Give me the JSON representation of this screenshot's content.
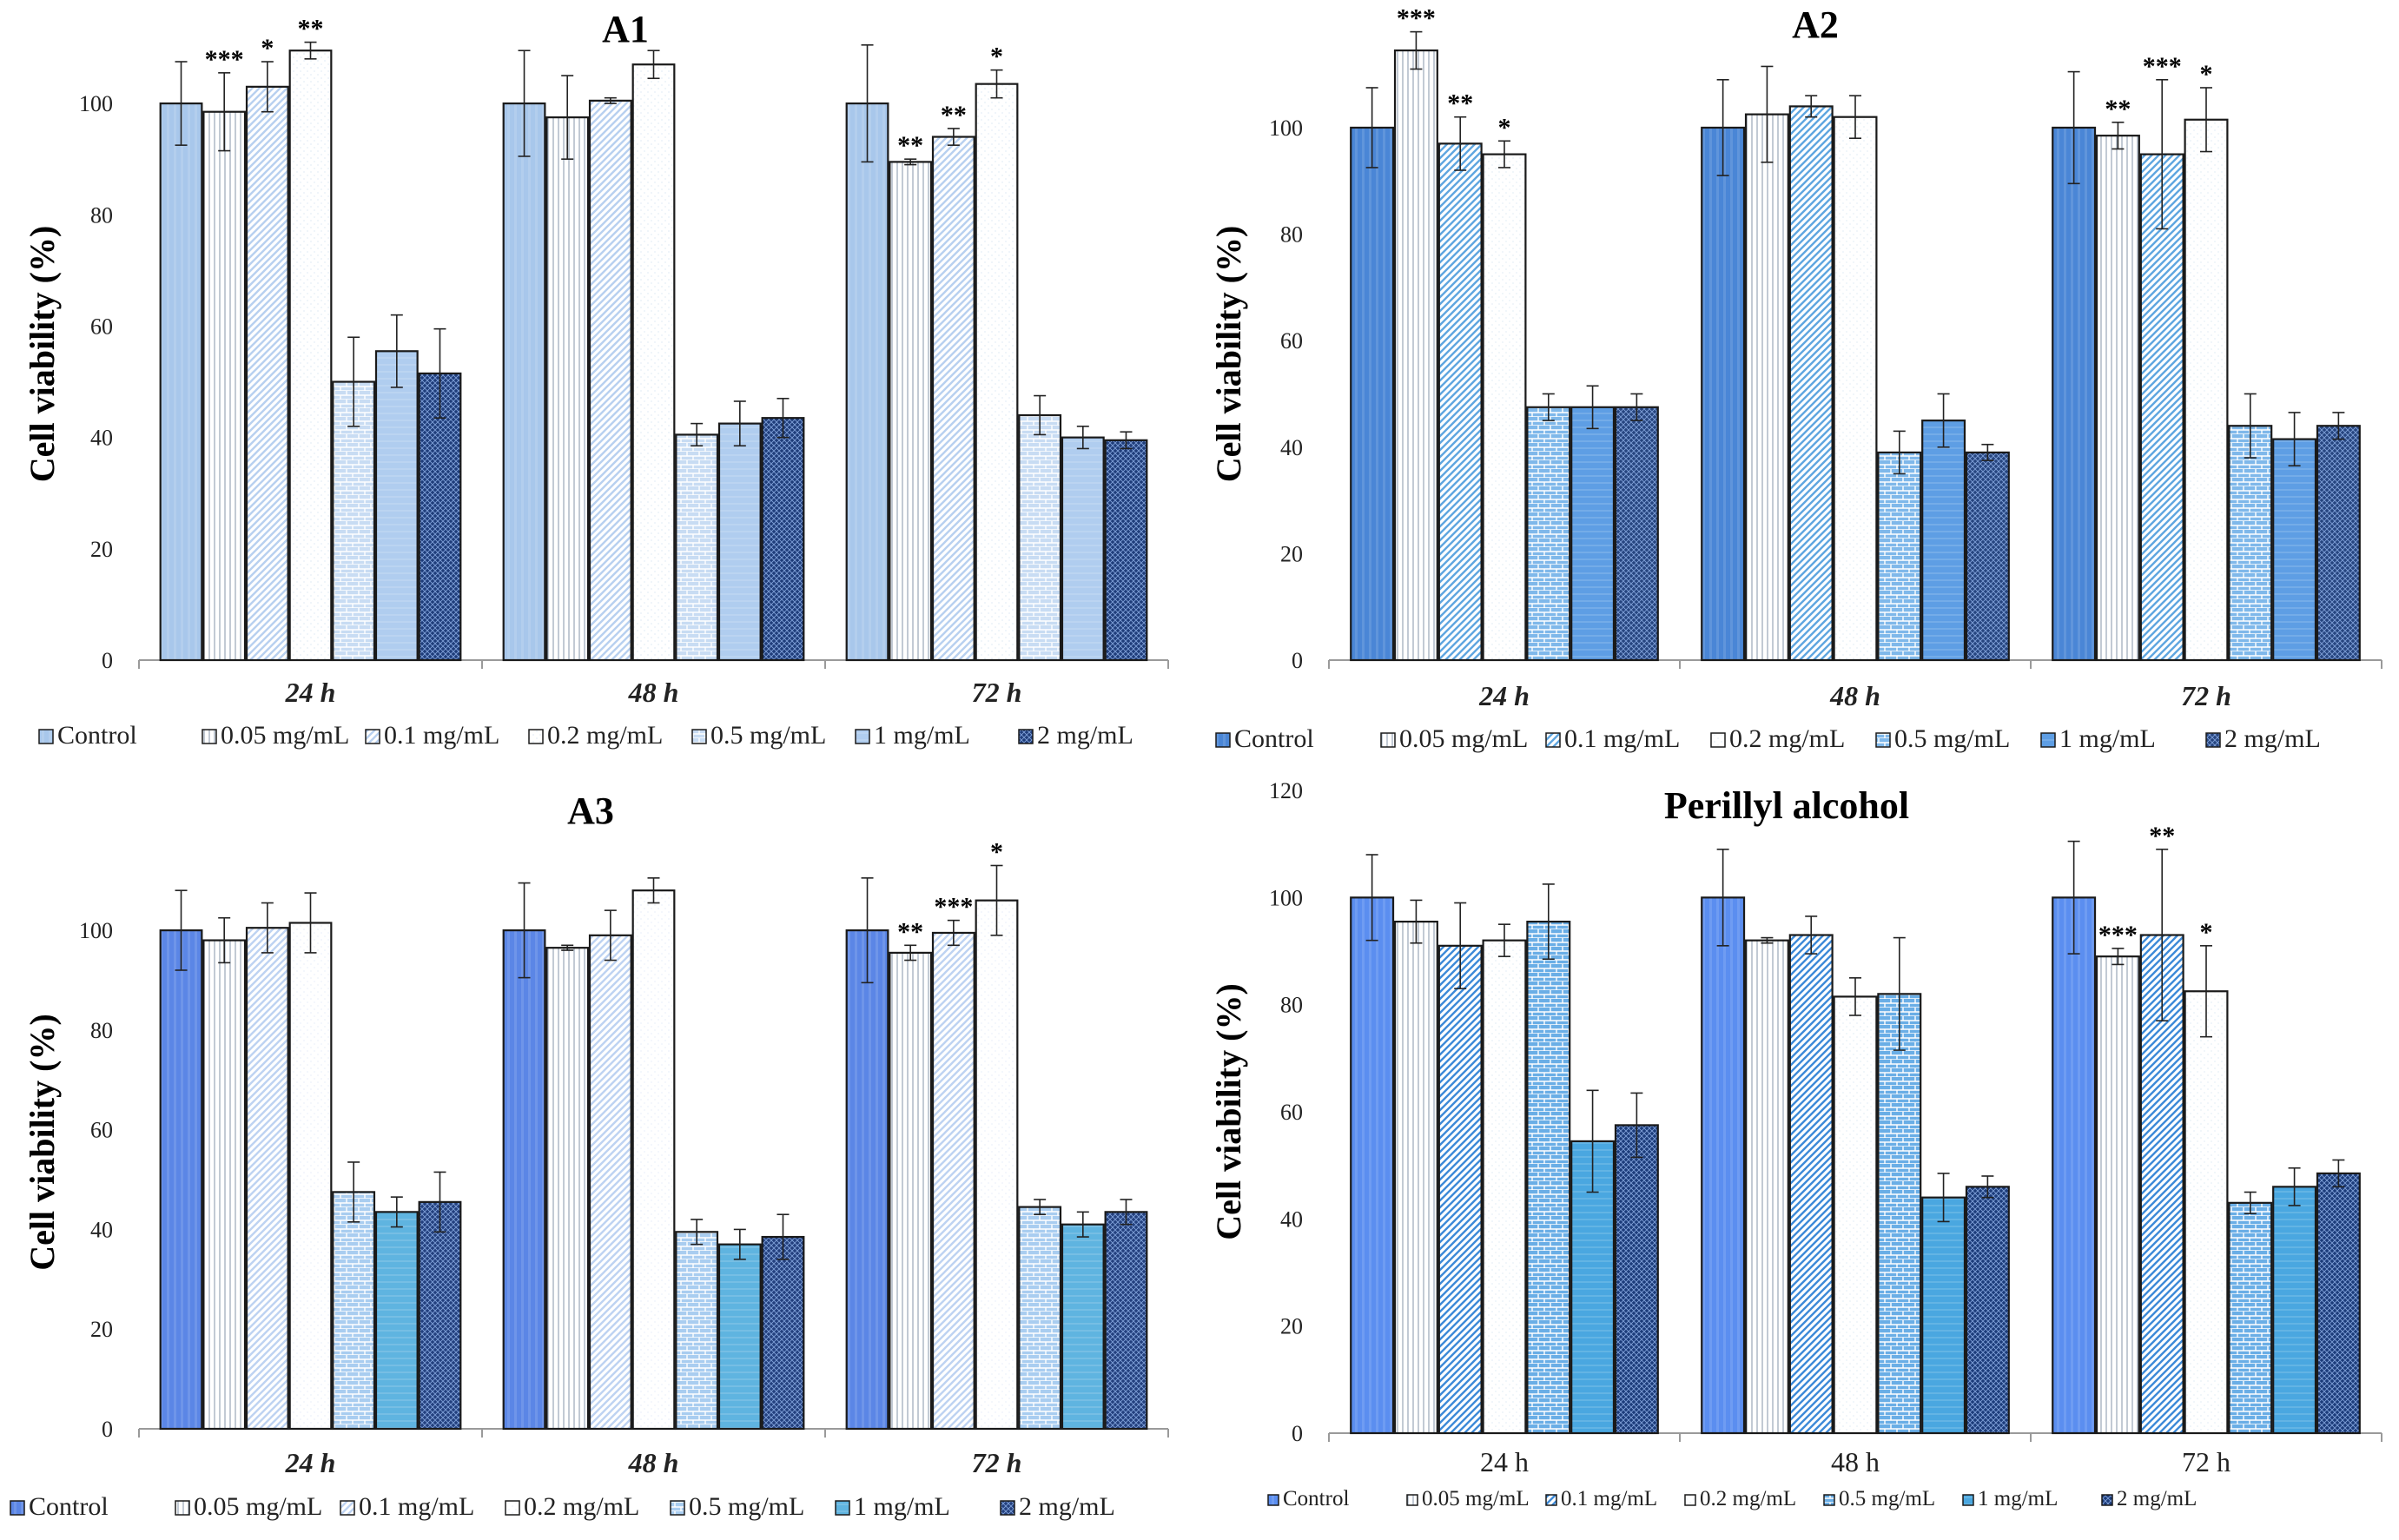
{
  "y_axis_label": "Cell viability (%)",
  "legend": [
    "Control",
    "0.05 mg/mL",
    "0.1 mg/mL",
    "0.2 mg/mL",
    "0.5 mg/mL",
    "1 mg/mL",
    "2 mg/mL"
  ],
  "chart_data": [
    {
      "type": "bar",
      "title": "A1",
      "ylabel": "Cell viability (%)",
      "ylim": [
        0,
        110
      ],
      "yticks": [
        0,
        20,
        40,
        60,
        80,
        100
      ],
      "categories": [
        "24 h",
        "48 h",
        "72 h"
      ],
      "series": [
        {
          "name": "Control",
          "values": [
            100,
            100,
            100
          ],
          "errors": [
            7.5,
            9.5,
            10.5
          ],
          "sig": [
            "",
            "",
            ""
          ]
        },
        {
          "name": "0.05 mg/mL",
          "values": [
            98.5,
            97.5,
            89.5
          ],
          "errors": [
            7,
            7.5,
            0.5
          ],
          "sig": [
            "***",
            "",
            "**"
          ]
        },
        {
          "name": "0.1 mg/mL",
          "values": [
            103,
            100.5,
            94
          ],
          "errors": [
            4.5,
            0.5,
            1.5
          ],
          "sig": [
            "*",
            "",
            "**"
          ]
        },
        {
          "name": "0.2 mg/mL",
          "values": [
            109.5,
            107,
            103.5
          ],
          "errors": [
            1.5,
            2.5,
            2.5
          ],
          "sig": [
            "**",
            "",
            "*"
          ]
        },
        {
          "name": "0.5 mg/mL",
          "values": [
            50,
            40.5,
            44
          ],
          "errors": [
            8,
            2,
            3.5
          ],
          "sig": [
            "",
            "",
            ""
          ]
        },
        {
          "name": "1 mg/mL",
          "values": [
            55.5,
            42.5,
            40
          ],
          "errors": [
            6.5,
            4,
            2
          ],
          "sig": [
            "",
            "",
            ""
          ]
        },
        {
          "name": "2 mg/mL",
          "values": [
            51.5,
            43.5,
            39.5
          ],
          "errors": [
            8,
            3.5,
            1.5
          ],
          "sig": [
            "",
            "",
            ""
          ]
        }
      ]
    },
    {
      "type": "bar",
      "title": "A2",
      "ylabel": "Cell viability (%)",
      "ylim": [
        0,
        115
      ],
      "yticks": [
        0,
        20,
        40,
        60,
        80,
        100
      ],
      "categories": [
        "24 h",
        "48 h",
        "72 h"
      ],
      "series": [
        {
          "name": "Control",
          "values": [
            100,
            100,
            100
          ],
          "errors": [
            7.5,
            9,
            10.5
          ],
          "sig": [
            "",
            "",
            ""
          ]
        },
        {
          "name": "0.05 mg/mL",
          "values": [
            114.5,
            102.5,
            98.5
          ],
          "errors": [
            3.5,
            9,
            2.5
          ],
          "sig": [
            "***",
            "",
            "**"
          ]
        },
        {
          "name": "0.1 mg/mL",
          "values": [
            97,
            104,
            95
          ],
          "errors": [
            5,
            2,
            14
          ],
          "sig": [
            "**",
            "",
            "***"
          ]
        },
        {
          "name": "0.2 mg/mL",
          "values": [
            95,
            102,
            101.5
          ],
          "errors": [
            2.5,
            4,
            6
          ],
          "sig": [
            "*",
            "",
            "*"
          ]
        },
        {
          "name": "0.5 mg/mL",
          "values": [
            47.5,
            39,
            44
          ],
          "errors": [
            2.5,
            4,
            6
          ],
          "sig": [
            "",
            "",
            ""
          ]
        },
        {
          "name": "1 mg/mL",
          "values": [
            47.5,
            45,
            41.5
          ],
          "errors": [
            4,
            5,
            5
          ],
          "sig": [
            "",
            "",
            ""
          ]
        },
        {
          "name": "2 mg/mL",
          "values": [
            47.5,
            39,
            44
          ],
          "errors": [
            2.5,
            1.5,
            2.5
          ],
          "sig": [
            "",
            "",
            ""
          ]
        }
      ]
    },
    {
      "type": "bar",
      "title": "A3",
      "ylabel": "Cell viability (%)",
      "ylim": [
        0,
        115
      ],
      "yticks": [
        0,
        20,
        40,
        60,
        80,
        100
      ],
      "categories": [
        "24 h",
        "48 h",
        "72 h"
      ],
      "series": [
        {
          "name": "Control",
          "values": [
            100,
            100,
            100
          ],
          "errors": [
            8,
            9.5,
            10.5
          ],
          "sig": [
            "",
            "",
            ""
          ]
        },
        {
          "name": "0.05 mg/mL",
          "values": [
            98,
            96.5,
            95.5
          ],
          "errors": [
            4.5,
            0.5,
            1.5
          ],
          "sig": [
            "",
            "",
            "**"
          ]
        },
        {
          "name": "0.1 mg/mL",
          "values": [
            100.5,
            99,
            99.5
          ],
          "errors": [
            5,
            5,
            2.5
          ],
          "sig": [
            "",
            "",
            "***"
          ]
        },
        {
          "name": "0.2 mg/mL",
          "values": [
            101.5,
            108,
            106
          ],
          "errors": [
            6,
            2.5,
            7
          ],
          "sig": [
            "",
            "",
            "*"
          ]
        },
        {
          "name": "0.5 mg/mL",
          "values": [
            47.5,
            39.5,
            44.5
          ],
          "errors": [
            6,
            2.5,
            1.5
          ],
          "sig": [
            "",
            "",
            ""
          ]
        },
        {
          "name": "1 mg/mL",
          "values": [
            43.5,
            37,
            41
          ],
          "errors": [
            3,
            3,
            2.5
          ],
          "sig": [
            "",
            "",
            ""
          ]
        },
        {
          "name": "2 mg/mL",
          "values": [
            45.5,
            38.5,
            43.5
          ],
          "errors": [
            6,
            4.5,
            2.5
          ],
          "sig": [
            "",
            "",
            ""
          ]
        }
      ]
    },
    {
      "type": "bar",
      "title": "Perillyl alcohol",
      "ylabel": "Cell viability (%)",
      "ylim": [
        0,
        120
      ],
      "yticks": [
        0,
        20,
        40,
        60,
        80,
        100,
        120
      ],
      "categories": [
        "24 h",
        "48 h",
        "72 h"
      ],
      "series": [
        {
          "name": "Control",
          "values": [
            100,
            100,
            100
          ],
          "errors": [
            8,
            9,
            10.5
          ],
          "sig": [
            "",
            "",
            ""
          ]
        },
        {
          "name": "0.05 mg/mL",
          "values": [
            95.5,
            92,
            89
          ],
          "errors": [
            4,
            0.5,
            1.5
          ],
          "sig": [
            "",
            "",
            "***"
          ]
        },
        {
          "name": "0.1 mg/mL",
          "values": [
            91,
            93,
            93
          ],
          "errors": [
            8,
            3.5,
            16
          ],
          "sig": [
            "",
            "",
            "**"
          ]
        },
        {
          "name": "0.2 mg/mL",
          "values": [
            92,
            81.5,
            82.5
          ],
          "errors": [
            3,
            3.5,
            8.5
          ],
          "sig": [
            "",
            "",
            "*"
          ]
        },
        {
          "name": "0.5 mg/mL",
          "values": [
            95.5,
            82,
            43
          ],
          "errors": [
            7,
            10.5,
            2
          ],
          "sig": [
            "",
            "",
            ""
          ]
        },
        {
          "name": "1 mg/mL",
          "values": [
            54.5,
            44,
            46
          ],
          "errors": [
            9.5,
            4.5,
            3.5
          ],
          "sig": [
            "",
            "",
            ""
          ]
        },
        {
          "name": "2 mg/mL",
          "values": [
            57.5,
            46,
            48.5
          ],
          "errors": [
            6,
            2,
            2.5
          ],
          "sig": [
            "",
            "",
            ""
          ]
        }
      ]
    }
  ]
}
